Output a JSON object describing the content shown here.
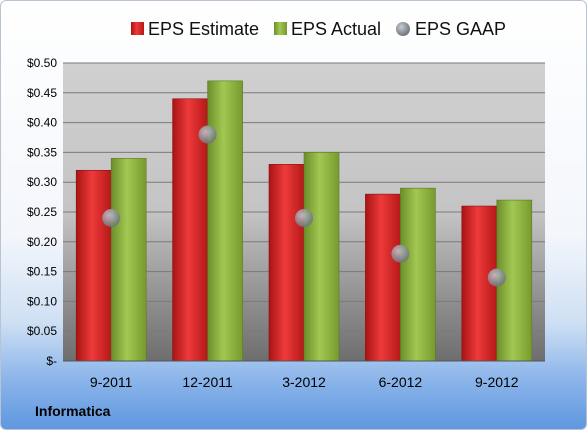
{
  "company": "Informatica",
  "colors": {
    "estimate": "#d42a2a",
    "actual": "#8cb43c",
    "gaap": "#a0a4ad"
  },
  "chart_data": {
    "type": "bar",
    "title": "",
    "xlabel": "",
    "ylabel": "",
    "categories": [
      "9-2011",
      "12-2011",
      "3-2012",
      "6-2012",
      "9-2012"
    ],
    "series": [
      {
        "name": "EPS Estimate",
        "kind": "bar",
        "values": [
          0.32,
          0.44,
          0.33,
          0.28,
          0.26
        ]
      },
      {
        "name": "EPS Actual",
        "kind": "bar",
        "values": [
          0.34,
          0.47,
          0.35,
          0.29,
          0.27
        ]
      },
      {
        "name": "EPS GAAP",
        "kind": "marker",
        "values": [
          0.24,
          0.38,
          0.24,
          0.18,
          0.14
        ]
      }
    ],
    "ylim": [
      0,
      0.5
    ],
    "yticks": [
      0,
      0.05,
      0.1,
      0.15,
      0.2,
      0.25,
      0.3,
      0.35,
      0.4,
      0.45,
      0.5
    ],
    "ytick_labels": [
      "$-",
      "$0.05",
      "$0.10",
      "$0.15",
      "$0.20",
      "$0.25",
      "$0.30",
      "$0.35",
      "$0.40",
      "$0.45",
      "$0.50"
    ],
    "grid": true,
    "legend": "top"
  }
}
